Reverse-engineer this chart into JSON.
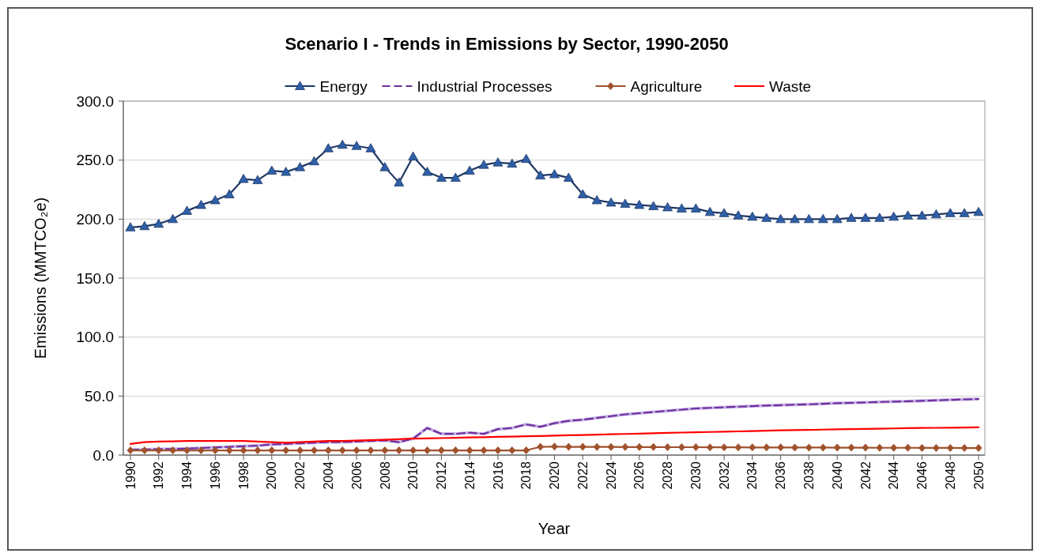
{
  "chart_data": {
    "type": "line",
    "title": "Scenario I - Trends in Emissions by Sector, 1990-2050",
    "xlabel": "Year",
    "ylabel": "Emissions (MMTCO₂e)",
    "categories": [
      "1990",
      null,
      "1992",
      null,
      "1994",
      null,
      "1996",
      null,
      "1998",
      null,
      "2000",
      null,
      "2002",
      null,
      "2004",
      null,
      "2006",
      null,
      "2008",
      null,
      "2010",
      null,
      "2012",
      null,
      "2014",
      null,
      "2016",
      null,
      "2018",
      null,
      "2020",
      null,
      "2022",
      null,
      "2024",
      null,
      "2026",
      null,
      "2028",
      null,
      "2030",
      null,
      "2032",
      null,
      "2034",
      null,
      "2036",
      null,
      "2038",
      null,
      "2040",
      null,
      "2042",
      null,
      "2044",
      null,
      "2046",
      null,
      "2048",
      null,
      "2050"
    ],
    "ylim": [
      0,
      300
    ],
    "yticks": [
      {
        "value": 0,
        "label": "0.0"
      },
      {
        "value": 50,
        "label": "50.0"
      },
      {
        "value": 100,
        "label": "100.0"
      },
      {
        "value": 150,
        "label": "150.0"
      },
      {
        "value": 200,
        "label": "200.0"
      },
      {
        "value": 250,
        "label": "250.0"
      },
      {
        "value": 300,
        "label": "300.0"
      }
    ],
    "grid": "y",
    "legend": "top",
    "series": [
      {
        "name": "Energy",
        "color": "#2e5fa8",
        "marker": "triangle",
        "line_style": "solid",
        "values": [
          193,
          194,
          196,
          200,
          207,
          212,
          216,
          221,
          234,
          233,
          241,
          240,
          244,
          249,
          260,
          263,
          262,
          260,
          244,
          231,
          253,
          240,
          235,
          235,
          241,
          246,
          248,
          247,
          251,
          237,
          238,
          235,
          221,
          216,
          214,
          213,
          212,
          211,
          210,
          209,
          209,
          206,
          205,
          203,
          202,
          201,
          200,
          200,
          200,
          200,
          200,
          201,
          201,
          201,
          202,
          203,
          203,
          204,
          205,
          205,
          206
        ]
      },
      {
        "name": "Industrial Processes",
        "color": "#7030a0",
        "marker": "none",
        "line_style": "dashed",
        "values": [
          4.5,
          4.7,
          5,
          5.2,
          5.5,
          6,
          6.5,
          7,
          7.5,
          8,
          9,
          9.5,
          10,
          10.5,
          11,
          11,
          11.5,
          12,
          12.5,
          11,
          14,
          23,
          18,
          18,
          19,
          18,
          22,
          23,
          26,
          24,
          27,
          29,
          30,
          31.5,
          33,
          34.5,
          35.5,
          36.5,
          37.5,
          38.5,
          39.5,
          40,
          40.5,
          41,
          41.5,
          42,
          42.3,
          42.7,
          43,
          43.5,
          44,
          44.3,
          44.6,
          45,
          45.3,
          45.6,
          46,
          46.4,
          46.8,
          47.2,
          47.5
        ]
      },
      {
        "name": "Agriculture",
        "color": "#a0522d",
        "marker": "diamond",
        "line_style": "solid",
        "values": [
          4,
          4,
          4,
          4,
          4,
          4,
          4,
          4,
          4,
          4,
          4,
          4,
          4,
          4,
          4,
          4,
          4,
          4,
          4,
          4,
          4,
          4,
          4,
          4,
          4,
          4,
          4,
          4,
          4,
          7,
          7.2,
          7,
          7,
          6.9,
          6.9,
          6.8,
          6.8,
          6.8,
          6.7,
          6.7,
          6.7,
          6.6,
          6.6,
          6.6,
          6.5,
          6.5,
          6.5,
          6.4,
          6.4,
          6.4,
          6.3,
          6.3,
          6.3,
          6.2,
          6.2,
          6.2,
          6.1,
          6.1,
          6.1,
          6,
          6
        ]
      },
      {
        "name": "Waste",
        "color": "#ff0000",
        "marker": "none",
        "line_style": "solid",
        "values": [
          9.5,
          11,
          11.5,
          11.7,
          12,
          12,
          12,
          12,
          12,
          11.5,
          11,
          10.5,
          11,
          11.5,
          12,
          12,
          12.3,
          12.6,
          13,
          13.5,
          14,
          14.2,
          14.4,
          14.6,
          15,
          15.2,
          15.5,
          15.7,
          16,
          16.2,
          16.5,
          16.8,
          17,
          17.3,
          17.6,
          17.9,
          18.2,
          18.5,
          18.8,
          19.1,
          19.4,
          19.6,
          19.8,
          20.1,
          20.4,
          20.7,
          21,
          21.2,
          21.4,
          21.6,
          21.8,
          22,
          22.2,
          22.4,
          22.6,
          22.8,
          23,
          23.1,
          23.2,
          23.3,
          23.5
        ]
      }
    ]
  }
}
